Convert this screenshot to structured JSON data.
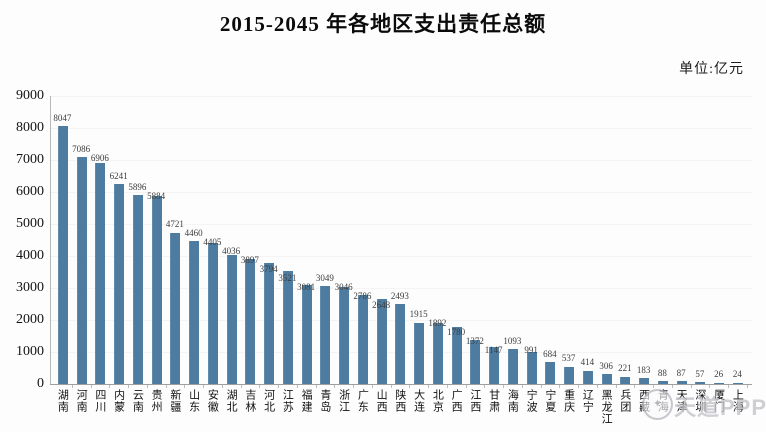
{
  "title": "2015-2045 年各地区支出责任总额",
  "unit_label": "单位:亿元",
  "watermark": {
    "text": "天道PPP"
  },
  "colors": {
    "bar": "#4d7ca0",
    "axis": "#9f9f9f",
    "value_label": "#3d3d3d",
    "watermark": "#a3a3ac"
  },
  "chart_data": {
    "type": "bar",
    "title": "2015-2045 年各地区支出责任总额",
    "xlabel": "",
    "ylabel": "亿元",
    "ylim": [
      0,
      9000
    ],
    "yticks": [
      0,
      1000,
      2000,
      3000,
      4000,
      5000,
      6000,
      7000,
      8000,
      9000
    ],
    "grid": false,
    "legend": "none",
    "categories": [
      "湖南",
      "河南",
      "四川",
      "内蒙",
      "云南",
      "贵州",
      "新疆",
      "山东",
      "安徽",
      "湖北",
      "吉林",
      "河北",
      "江苏",
      "福建",
      "青岛",
      "浙江",
      "广东",
      "山西",
      "陕西",
      "大连",
      "北京",
      "广西",
      "江西",
      "甘肃",
      "海南",
      "宁波",
      "宁夏",
      "重庆",
      "辽宁",
      "黑龙江",
      "兵团",
      "西藏",
      "青海",
      "天津",
      "深圳",
      "厦门",
      "上海"
    ],
    "values": [
      8047,
      7086,
      6906,
      6241,
      5896,
      5884,
      4721,
      4460,
      4405,
      4036,
      3897,
      3794,
      3521,
      3081,
      3049,
      3046,
      2786,
      2648,
      2493,
      1915,
      1892,
      1780,
      1372,
      1147,
      1093,
      991,
      684,
      537,
      414,
      306,
      221,
      183,
      88,
      87,
      57,
      26,
      24
    ],
    "data_labels_visible": true,
    "note": "label for value 88 is obscured by watermark logo in source image"
  }
}
